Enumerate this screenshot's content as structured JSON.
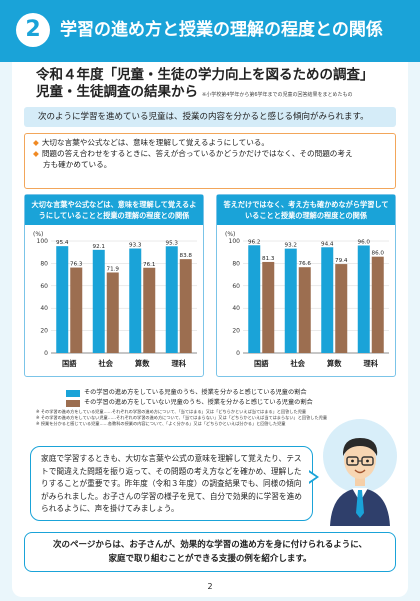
{
  "header": {
    "number": "2",
    "title": "学習の進め方と授業の理解の程度との関係"
  },
  "survey": {
    "title_line1": "令和４年度「児童・生徒の学力向上を図るための調査」",
    "title_line2": "児童・生徒調査の結果から",
    "note": "※小学校第4学年から第6学年までの児童の回答結果をまとめたもの"
  },
  "finding": "次のように学習を進めている児童は、授業の内容を分かると感じる傾向がみられます。",
  "bullets": {
    "b1": "大切な言葉や公式などは、意味を理解して覚えるようにしている。",
    "b2_line1": "問題の答え合わせをするときに、答えが合っているかどうかだけではなく、その問題の考え",
    "b2_line2": "方も確かめている。"
  },
  "chart_data": [
    {
      "type": "bar",
      "title": "大切な言葉や公式などは、意味を理解して覚えるようにしていることと授業の理解の程度との関係",
      "ylabel": "(%)",
      "ylim": [
        0,
        100
      ],
      "yticks": [
        0,
        20,
        40,
        60,
        80,
        100
      ],
      "grid": true,
      "categories": [
        "国語",
        "社会",
        "算数",
        "理科"
      ],
      "series": [
        {
          "name": "その学習の進め方をしている児童のうち、授業を分かると感じている児童の割合",
          "values": [
            95.4,
            92.1,
            93.3,
            95.3
          ],
          "color": "#1aa3d8"
        },
        {
          "name": "その学習の進め方をしていない児童のうち、授業を分かると感じている児童の割合",
          "values": [
            76.3,
            71.9,
            76.1,
            83.8
          ],
          "color": "#9c6e50"
        }
      ]
    },
    {
      "type": "bar",
      "title": "答えだけではなく、考え方も確かめながら学習していることと授業の理解の程度との関係",
      "ylabel": "(%)",
      "ylim": [
        0,
        100
      ],
      "yticks": [
        0,
        20,
        40,
        60,
        80,
        100
      ],
      "grid": true,
      "categories": [
        "国語",
        "社会",
        "算数",
        "理科"
      ],
      "series": [
        {
          "name": "その学習の進め方をしている児童のうち、授業を分かると感じている児童の割合",
          "values": [
            96.2,
            93.2,
            94.4,
            96.0
          ],
          "color": "#1aa3d8"
        },
        {
          "name": "その学習の進め方をしていない児童のうち、授業を分かると感じている児童の割合",
          "values": [
            81.3,
            76.6,
            79.4,
            86.0
          ],
          "color": "#9c6e50"
        }
      ]
    }
  ],
  "legend": {
    "item1": "その学習の進め方をしている児童のうち、授業を分かると感じている児童の割合",
    "item2": "その学習の進め方をしていない児童のうち、授業を分かると感じている児童の割合"
  },
  "notes": {
    "n1": "※ その学習の進め方をしている児童……それぞれの学習の進め方について、「当てはまる」又は「どちらかといえば当てはまる」と回答した児童",
    "n2": "※ その学習の進め方をしていない児童……それぞれの学習の進め方について、「当てはまらない」又は「どちらかといえば当てはまらない」と回答した児童",
    "n3": "※ 授業を分かると感じている児童……各教科の授業の内容について、「よく分かる」又は「どちらかといえば分かる」と回答した児童"
  },
  "bubble": "家庭で学習するときも、大切な言葉や公式の意味を理解して覚えたり、テストで間違えた問題を振り返って、その問題の考え方などを確かめ、理解したりすることが重要です。昨年度（令和３年度）の調査結果でも、同様の傾向がみられました。お子さんの学習の様子を見て、自分で効果的に学習を進められるように、声を掛けてみましょう。",
  "bottom": {
    "line1": "次のページからは、お子さんが、効果的な学習の進め方を身に付けられるように、",
    "line2": "家庭で取り組むことができる支援の例を紹介します。"
  },
  "page_number": "2",
  "colors": {
    "accent": "#1aa3d8",
    "brown": "#9c6e50",
    "orange": "#f08a24"
  }
}
